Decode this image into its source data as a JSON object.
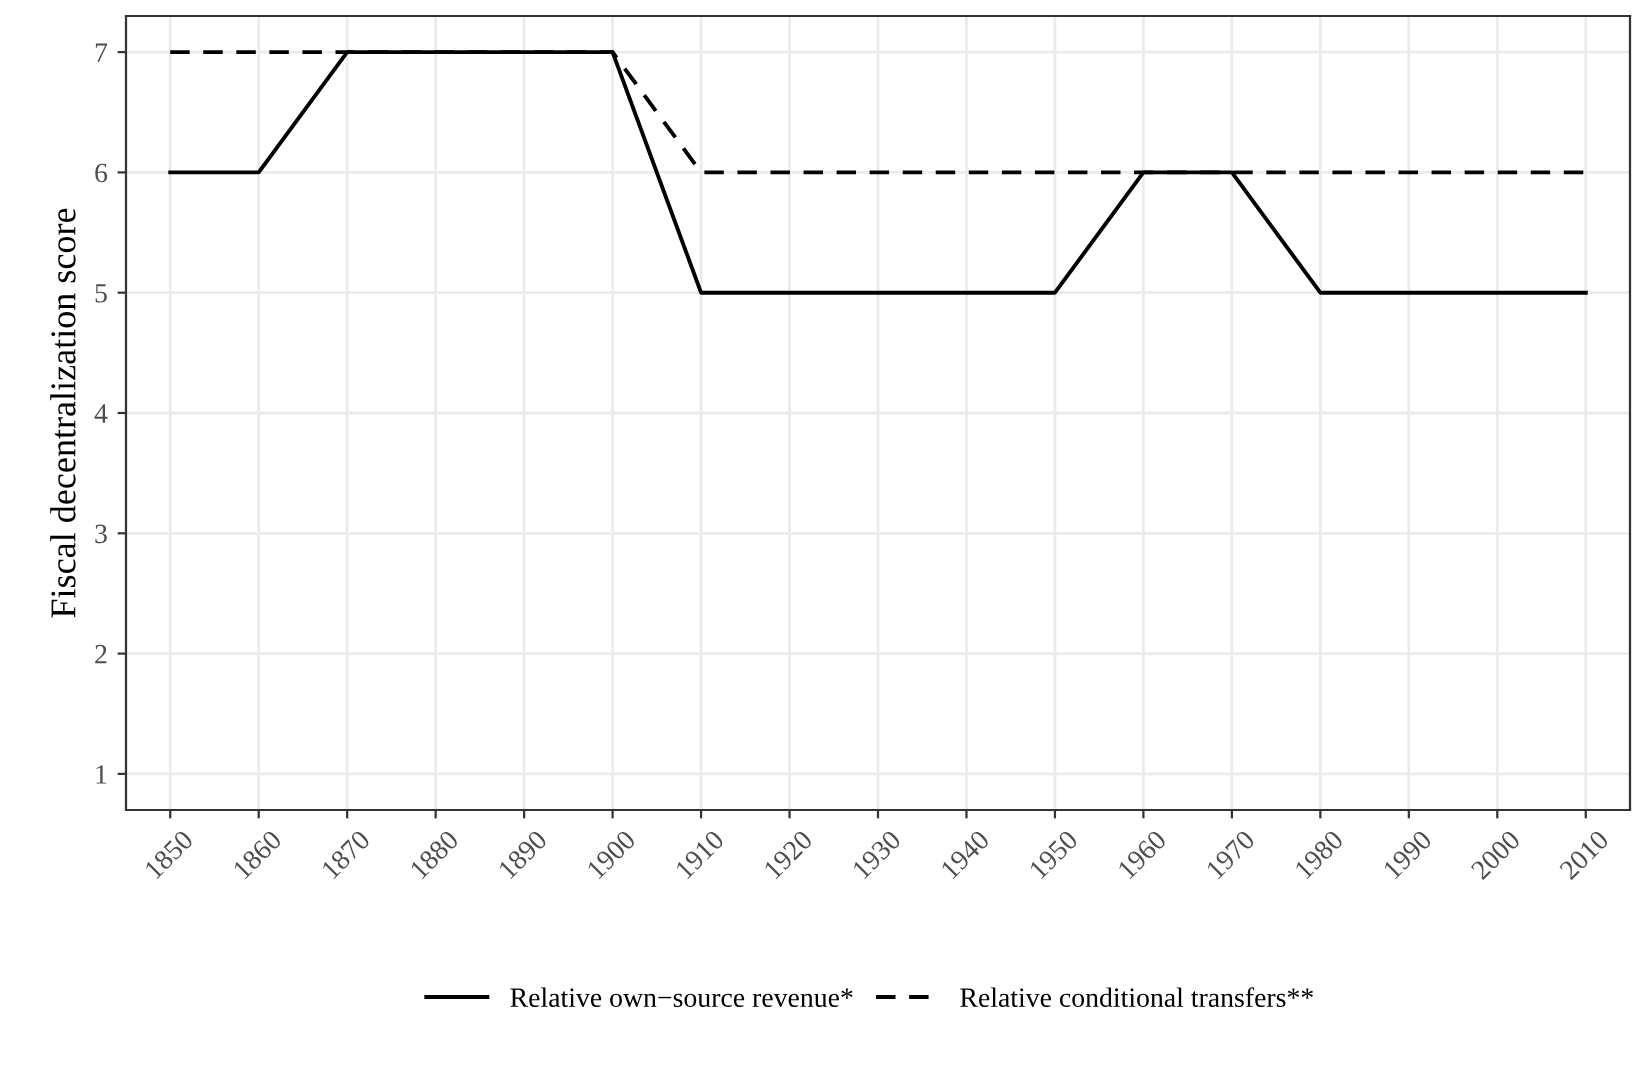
{
  "chart_data": {
    "type": "line",
    "ylabel": "Fiscal decentralization score",
    "x": [
      1850,
      1860,
      1870,
      1880,
      1890,
      1900,
      1910,
      1920,
      1930,
      1940,
      1950,
      1960,
      1970,
      1980,
      1990,
      2000,
      2010
    ],
    "series": [
      {
        "name": "Relative own−source revenue*",
        "color": "#000000",
        "line_style": "solid",
        "values": [
          6,
          6,
          7,
          7,
          7,
          7,
          5,
          5,
          5,
          5,
          5,
          6,
          6,
          5,
          5,
          5,
          5
        ]
      },
      {
        "name": "Relative conditional transfers**",
        "color": "#000000",
        "line_style": "dashed",
        "values": [
          7,
          7,
          7,
          7,
          7,
          7,
          6,
          6,
          6,
          6,
          6,
          6,
          6,
          6,
          6,
          6,
          6
        ]
      }
    ],
    "xlim": [
      1845,
      2015
    ],
    "xticks": [
      1850,
      1860,
      1870,
      1880,
      1890,
      1900,
      1910,
      1920,
      1930,
      1940,
      1950,
      1960,
      1970,
      1980,
      1990,
      2000,
      2010
    ],
    "ylim": [
      0.7,
      7.3
    ],
    "yticks": [
      1,
      2,
      3,
      4,
      5,
      6,
      7
    ],
    "grid": true,
    "legend": "bottom",
    "marker": "none"
  }
}
